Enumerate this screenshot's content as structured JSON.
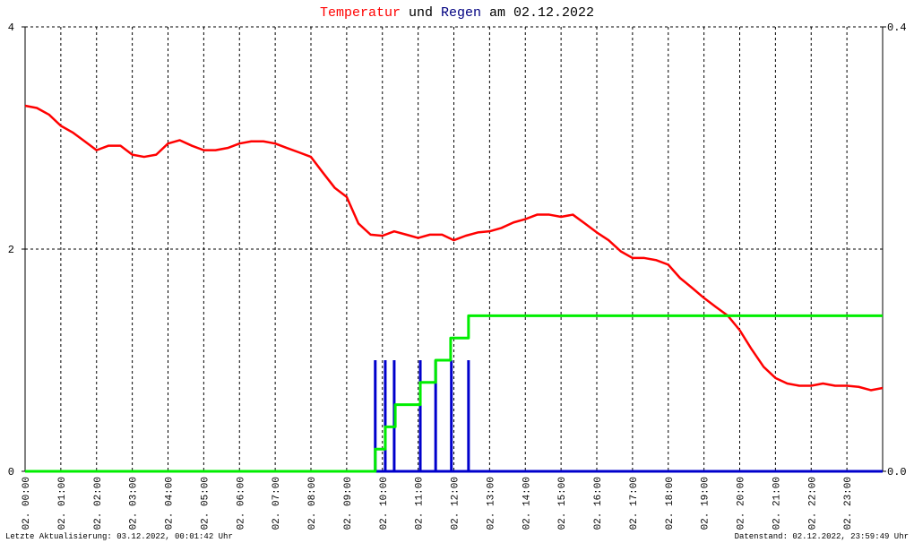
{
  "chart_data": {
    "type": "line",
    "title_parts": [
      {
        "text": "Temperatur",
        "color": "#ff0000"
      },
      {
        "text": "und",
        "color": "#000000"
      },
      {
        "text": "Regen",
        "color": "#000080"
      },
      {
        "text": "am 02.12.2022",
        "color": "#000000"
      }
    ],
    "xlim": [
      0,
      24
    ],
    "xticks": [
      {
        "value": 0,
        "label": "02. 00:00"
      },
      {
        "value": 1,
        "label": "02. 01:00"
      },
      {
        "value": 2,
        "label": "02. 02:00"
      },
      {
        "value": 3,
        "label": "02. 03:00"
      },
      {
        "value": 4,
        "label": "02. 04:00"
      },
      {
        "value": 5,
        "label": "02. 05:00"
      },
      {
        "value": 6,
        "label": "02. 06:00"
      },
      {
        "value": 7,
        "label": "02. 07:00"
      },
      {
        "value": 8,
        "label": "02. 08:00"
      },
      {
        "value": 9,
        "label": "02. 09:00"
      },
      {
        "value": 10,
        "label": "02. 10:00"
      },
      {
        "value": 11,
        "label": "02. 11:00"
      },
      {
        "value": 12,
        "label": "02. 12:00"
      },
      {
        "value": 13,
        "label": "02. 13:00"
      },
      {
        "value": 14,
        "label": "02. 14:00"
      },
      {
        "value": 15,
        "label": "02. 15:00"
      },
      {
        "value": 16,
        "label": "02. 16:00"
      },
      {
        "value": 17,
        "label": "02. 17:00"
      },
      {
        "value": 18,
        "label": "02. 18:00"
      },
      {
        "value": 19,
        "label": "02. 19:00"
      },
      {
        "value": 20,
        "label": "02. 20:00"
      },
      {
        "value": 21,
        "label": "02. 21:00"
      },
      {
        "value": 22,
        "label": "02. 22:00"
      },
      {
        "value": 23,
        "label": "02. 23:00"
      }
    ],
    "ylim": [
      0,
      4
    ],
    "yticks": [
      0,
      2,
      4
    ],
    "y2lim": [
      0,
      0.4
    ],
    "y2ticks": [
      {
        "value": 0,
        "label": "0.0"
      },
      {
        "value": 0.4,
        "label": "0.4"
      }
    ],
    "grid": true,
    "series": [
      {
        "color": "#ff0000",
        "x": [
          0,
          0.33,
          0.67,
          1,
          1.33,
          1.67,
          2,
          2.33,
          2.67,
          3,
          3.33,
          3.67,
          4,
          4.33,
          4.67,
          5,
          5.33,
          5.67,
          6,
          6.33,
          6.67,
          7,
          7.33,
          7.67,
          8,
          8.33,
          8.67,
          9,
          9.33,
          9.67,
          10,
          10.33,
          10.67,
          11,
          11.33,
          11.67,
          12,
          12.33,
          12.67,
          13,
          13.33,
          13.67,
          14,
          14.33,
          14.67,
          15,
          15.33,
          15.67,
          16,
          16.33,
          16.67,
          17,
          17.33,
          17.67,
          18,
          18.33,
          18.67,
          19,
          19.33,
          19.67,
          20,
          20.33,
          20.67,
          21,
          21.33,
          21.67,
          22,
          22.33,
          22.67,
          23,
          23.33,
          23.67,
          24
        ],
        "values": [
          3.29,
          3.27,
          3.21,
          3.11,
          3.05,
          2.97,
          2.89,
          2.93,
          2.93,
          2.85,
          2.83,
          2.85,
          2.95,
          2.98,
          2.93,
          2.89,
          2.89,
          2.91,
          2.95,
          2.97,
          2.97,
          2.95,
          2.91,
          2.87,
          2.83,
          2.69,
          2.55,
          2.47,
          2.23,
          2.13,
          2.12,
          2.16,
          2.13,
          2.1,
          2.13,
          2.13,
          2.08,
          2.12,
          2.15,
          2.16,
          2.19,
          2.24,
          2.27,
          2.31,
          2.31,
          2.29,
          2.31,
          2.23,
          2.15,
          2.08,
          1.98,
          1.92,
          1.92,
          1.9,
          1.86,
          1.74,
          1.65,
          1.56,
          1.48,
          1.4,
          1.27,
          1.1,
          0.94,
          0.84,
          0.79,
          0.77,
          0.77,
          0.79,
          0.77,
          0.77,
          0.76,
          0.73,
          0.75
        ]
      },
      {
        "color": "#0000cc",
        "type": "bar",
        "axis": "y2",
        "x": [
          9.8,
          10.08,
          10.33,
          11.06,
          11.49,
          11.93,
          12.41
        ],
        "values": [
          0.1,
          0.1,
          0.1,
          0.1,
          0.1,
          0.1,
          0.1
        ]
      },
      {
        "color": "#00ee00",
        "axis": "y2",
        "step": "after",
        "x": [
          0,
          9.8,
          10.08,
          10.36,
          11.06,
          11.49,
          11.91,
          12.41,
          24
        ],
        "values": [
          0,
          0.02,
          0.04,
          0.06,
          0.08,
          0.1,
          0.12,
          0.14,
          0.14
        ]
      }
    ],
    "footer_left": "Letzte Aktualisierung: 03.12.2022, 00:01:42 Uhr",
    "footer_right": "Datenstand: 02.12.2022, 23:59:49 Uhr"
  }
}
